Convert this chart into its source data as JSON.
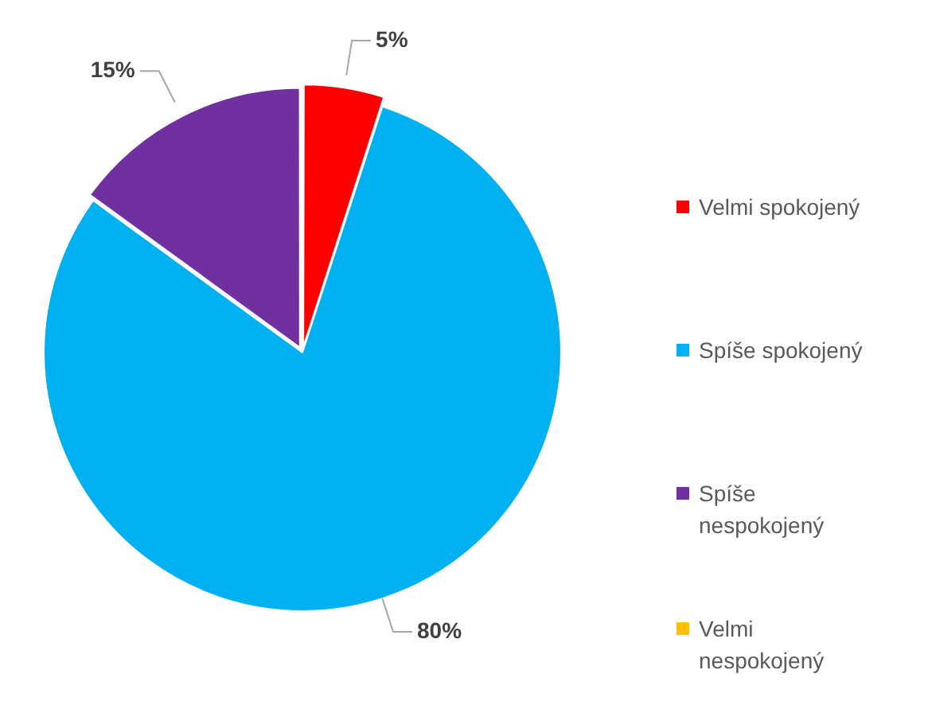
{
  "chart_data": {
    "type": "pie",
    "categories": [
      "Velmi spokojený",
      "Spíše spokojený",
      "Spíše nespokojený",
      "Velmi nespokojený"
    ],
    "values": [
      5,
      80,
      15,
      0
    ],
    "colors": [
      "#ff0000",
      "#00b0f0",
      "#7030a0",
      "#ffc000"
    ],
    "value_labels": [
      "5%",
      "80%",
      "15%",
      null
    ],
    "legend": "right"
  }
}
